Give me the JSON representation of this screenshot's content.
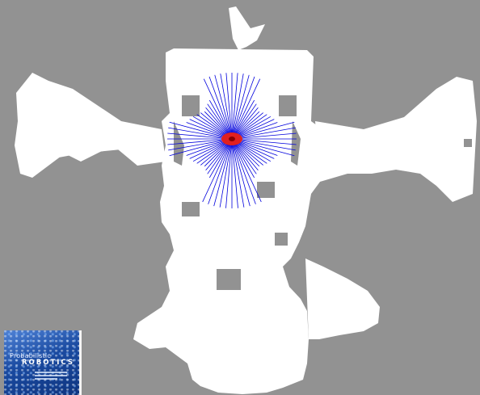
{
  "map": {
    "colors": {
      "unknown": "#929292",
      "free": "#ffffff",
      "scan_beam": "#0000dd",
      "robot": "#e02020",
      "robot_core": "#8a0000"
    },
    "scan": {
      "beam_count": 72
    }
  },
  "book_cover": {
    "title_line1": "Probabilistic",
    "title_line2": "ROBOTICS",
    "cover_color": "#1f4fa6"
  }
}
